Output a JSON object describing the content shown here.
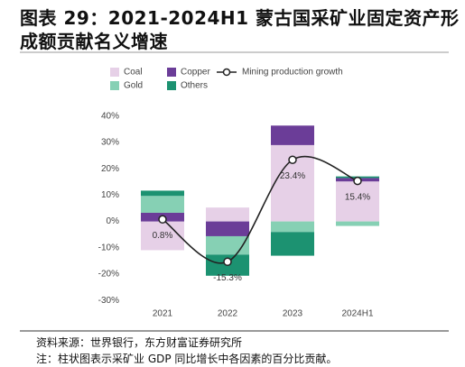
{
  "title": [
    "图表 29：2021-2024H1 蒙古国采矿业固定资产形",
    "成额贡献名义增速"
  ],
  "chart_data": {
    "type": "bar",
    "categories": [
      "2021",
      "2022",
      "2023",
      "2024H1"
    ],
    "series": [
      {
        "name": "Coal",
        "color": "#e6d0e7",
        "values": [
          -10.9,
          5.3,
          29.0,
          15.2
        ]
      },
      {
        "name": "Copper",
        "color": "#6b3d98",
        "values": [
          3.3,
          -5.6,
          7.4,
          1.3
        ]
      },
      {
        "name": "Gold",
        "color": "#86d0b4",
        "values": [
          6.4,
          -7.0,
          -4.0,
          -1.7
        ]
      },
      {
        "name": "Others",
        "color": "#1c9271",
        "values": [
          2.0,
          -8.0,
          -9.0,
          0.6
        ]
      },
      {
        "name": "Mining production growth",
        "type": "line",
        "color": "#222222",
        "values": [
          0.8,
          -15.3,
          23.4,
          15.4
        ],
        "value_labels": [
          "0.8%",
          "-15.3%",
          "23.4%",
          "15.4%"
        ]
      }
    ],
    "ylim": [
      -33,
      43
    ],
    "yticks": [
      {
        "value": -30,
        "label": "-30%"
      },
      {
        "value": -20,
        "label": "-20%"
      },
      {
        "value": -10,
        "label": "-10%"
      },
      {
        "value": 0,
        "label": "0%"
      },
      {
        "value": 10,
        "label": "10%"
      },
      {
        "value": 20,
        "label": "20%"
      },
      {
        "value": 30,
        "label": "30%"
      },
      {
        "value": 40,
        "label": "40%"
      }
    ],
    "grid": false
  },
  "footnotes": [
    "资料来源：世界银行，东方财富证券研究所",
    "注：柱状图表示采矿业 GDP 同比增长中各因素的百分比贡献。"
  ]
}
